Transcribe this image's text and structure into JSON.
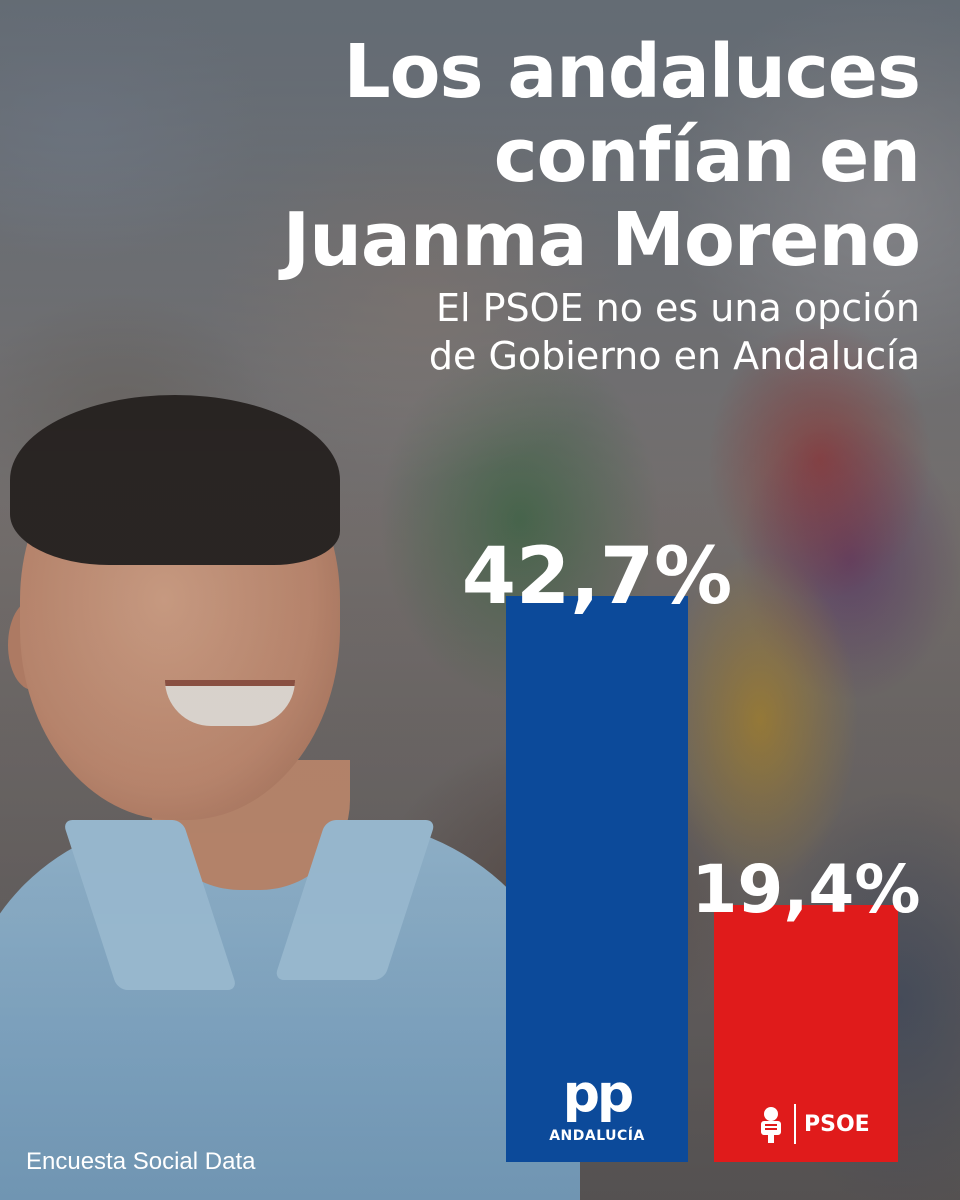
{
  "headline": {
    "title_lines": [
      "Los andaluces",
      "confían en",
      "Juanma Moreno"
    ],
    "subtitle_lines": [
      "El PSOE no es una opción",
      "de Gobierno en Andalucía"
    ]
  },
  "chart_data": {
    "type": "bar",
    "categories": [
      "PP Andalucía",
      "PSOE"
    ],
    "values": [
      42.7,
      19.4
    ],
    "value_labels": [
      "42,7%",
      "19,4%"
    ],
    "colors": [
      "#0c4a9a",
      "#e01b1b"
    ],
    "ylim": [
      0,
      50
    ],
    "title": "",
    "xlabel": "",
    "ylabel": "",
    "grid": false
  },
  "logos": {
    "pp": {
      "mark": "pp",
      "sub": "ANDALUCÍA"
    },
    "psoe": {
      "text": "PSOE"
    }
  },
  "source": "Encuesta Social Data"
}
